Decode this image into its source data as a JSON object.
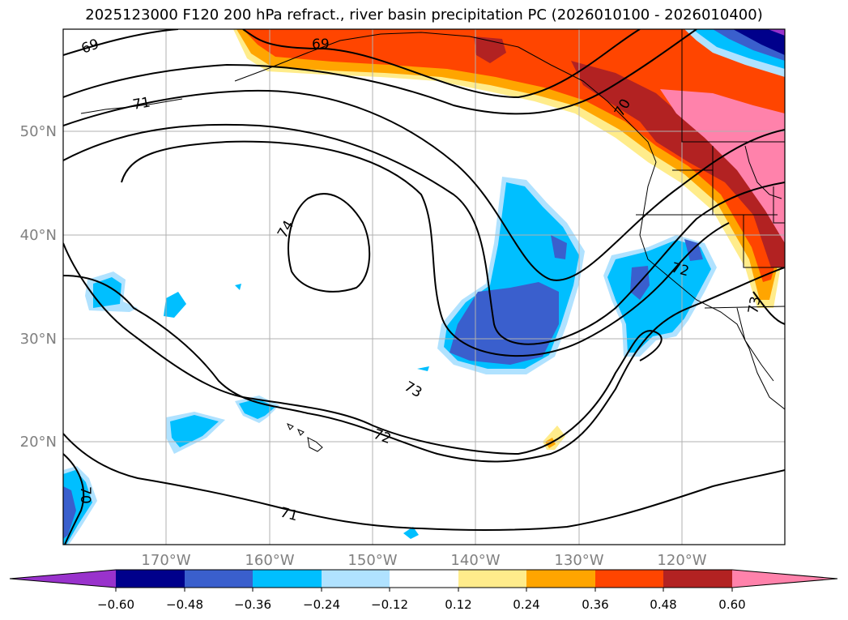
{
  "title": "2025123000 F120 200 hPa refract., river basin precipitation PC (2026010100 - 2026010400)",
  "lat_labels": [
    "50°N",
    "40°N",
    "30°N",
    "20°N"
  ],
  "lon_labels": [
    "170°W",
    "160°W",
    "150°W",
    "140°W",
    "130°W",
    "120°W"
  ],
  "contour_labels": [
    "69",
    "69",
    "71",
    "70",
    "74",
    "72",
    "73",
    "72",
    "71",
    "70",
    "73"
  ],
  "colorbar": {
    "ticks": [
      "−0.60",
      "−0.48",
      "−0.36",
      "−0.24",
      "−0.12",
      "0.12",
      "0.24",
      "0.36",
      "0.48",
      "0.60"
    ],
    "colors": [
      "#9932cc",
      "#00008b",
      "#3a5fcd",
      "#00bfff",
      "#b0e2ff",
      "#ffffff",
      "#ffec8b",
      "#ffa500",
      "#ff4500",
      "#b22222",
      "#ff82ab"
    ]
  },
  "colors": {
    "gridline": "#b0b0b0",
    "axis_label": "#808080",
    "contour": "#000000"
  }
}
